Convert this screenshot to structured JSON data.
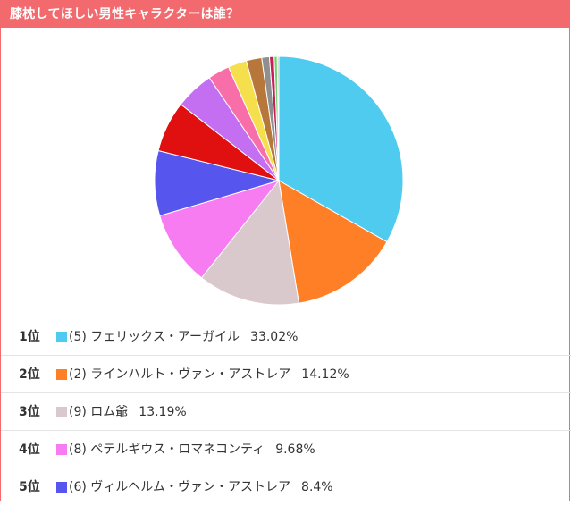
{
  "title": "膝枕してほしい男性キャラクターは誰？",
  "rank_suffix": "位",
  "chart_data": {
    "type": "pie",
    "slices": [
      {
        "value": 33.02,
        "color": "#4fcbef"
      },
      {
        "value": 14.12,
        "color": "#ff7f27"
      },
      {
        "value": 13.19,
        "color": "#d9c8cc"
      },
      {
        "value": 9.68,
        "color": "#f77cf2"
      },
      {
        "value": 8.4,
        "color": "#5656ee"
      },
      {
        "value": 6.6,
        "color": "#e01010"
      },
      {
        "value": 5.0,
        "color": "#c46ef2"
      },
      {
        "value": 2.8,
        "color": "#f76ea8"
      },
      {
        "value": 2.4,
        "color": "#f5df4d"
      },
      {
        "value": 2.0,
        "color": "#b7773a"
      },
      {
        "value": 1.0,
        "color": "#8f8f8f"
      },
      {
        "value": 0.6,
        "color": "#c91d5b"
      },
      {
        "value": 0.4,
        "color": "#6fd46f"
      },
      {
        "value": 0.2,
        "color": "#b8b8b8"
      }
    ]
  },
  "ranking": [
    {
      "rank": "1",
      "number": "(5)",
      "name": "フェリックス・アーガイル",
      "percent": "33.02%",
      "color": "#4fcbef"
    },
    {
      "rank": "2",
      "number": "(2)",
      "name": "ラインハルト・ヴァン・アストレア",
      "percent": "14.12%",
      "color": "#ff7f27"
    },
    {
      "rank": "3",
      "number": "(9)",
      "name": "ロム爺",
      "percent": "13.19%",
      "color": "#d9c8cc"
    },
    {
      "rank": "4",
      "number": "(8)",
      "name": "ペテルギウス・ロマネコンティ",
      "percent": "9.68%",
      "color": "#f77cf2"
    },
    {
      "rank": "5",
      "number": "(6)",
      "name": "ヴィルヘルム・ヴァン・アストレア",
      "percent": "8.4%",
      "color": "#5656ee"
    }
  ]
}
